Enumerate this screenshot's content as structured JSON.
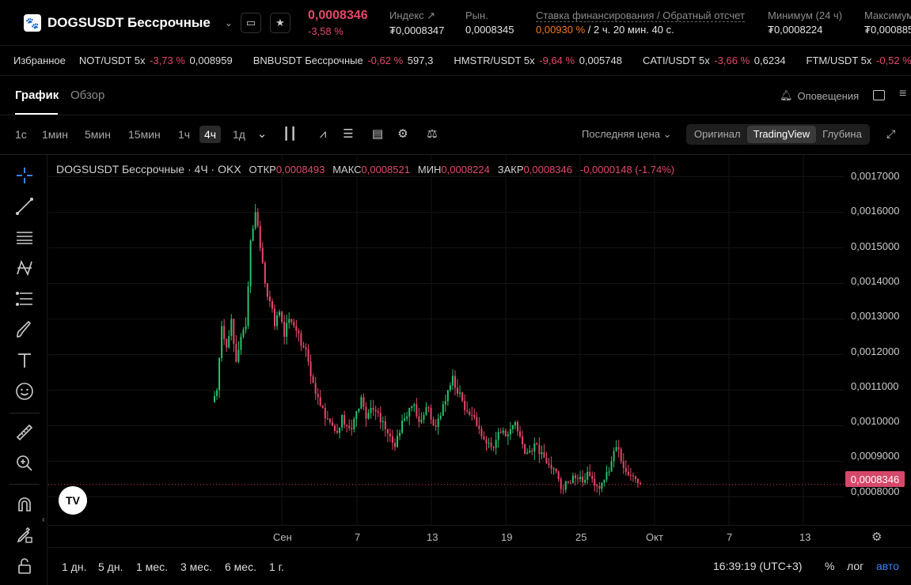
{
  "header": {
    "symbol": "DOGSUSDT Бессрочные",
    "price": "0,0008346",
    "change": "-3,58 %",
    "stats": [
      {
        "label": "Индекс",
        "value": "₮0,0008347"
      },
      {
        "label": "Рын.",
        "value": "0,0008345"
      },
      {
        "label": "Ставка финансирования / Обратный отсчет",
        "rate": "0,00930 %",
        "countdown": "/ 2 ч. 20 мин. 40 с."
      },
      {
        "label": "Минимум (24 ч)",
        "value": "₮0,0008224"
      },
      {
        "label": "Максимум",
        "value": "₮0,000885"
      }
    ]
  },
  "tickers": {
    "favorites_label": "Избранное",
    "items": [
      {
        "name": "NOT/USDT 5x",
        "change": "-3,73 %",
        "price": "0,008959"
      },
      {
        "name": "BNBUSDT Бессрочные",
        "change": "-0,62 %",
        "price": "597,3"
      },
      {
        "name": "HMSTR/USDT 5x",
        "change": "-9,64 %",
        "price": "0,005748"
      },
      {
        "name": "CATI/USDT 5x",
        "change": "-3,66 %",
        "price": "0,6234"
      },
      {
        "name": "FTM/USDT 5x",
        "change": "-0,52 %",
        "price": ""
      }
    ]
  },
  "tabs": {
    "chart": "График",
    "overview": "Обзор",
    "alerts": "Оповещения"
  },
  "toolbar": {
    "timeframes": [
      "1с",
      "1мин",
      "5мин",
      "15мин",
      "1ч",
      "4ч",
      "1д"
    ],
    "active_timeframe": "4ч",
    "price_type": "Последняя цена",
    "views": [
      "Оригинал",
      "TradingView",
      "Глубина"
    ],
    "active_view": "TradingView"
  },
  "legend": {
    "title": "DOGSUSDT Бессрочные · 4Ч · OKX",
    "open_label": "ОТКР",
    "open": "0,0008493",
    "high_label": "МАКС",
    "high": "0,0008521",
    "low_label": "МИН",
    "low": "0,0008224",
    "close_label": "ЗАКР",
    "close": "0,0008346",
    "change": "-0,0000148 (-1.74%)"
  },
  "axes": {
    "y_ticks": [
      "0,0017000",
      "0,0016000",
      "0,0015000",
      "0,0014000",
      "0,0013000",
      "0,0012000",
      "0,0011000",
      "0,0010000",
      "0,0009000",
      "0,0008000"
    ],
    "x_ticks": [
      "Сен",
      "7",
      "13",
      "19",
      "25",
      "Окт",
      "7",
      "13"
    ],
    "current_price": "0,0008346"
  },
  "bottom": {
    "ranges": [
      "1 дн.",
      "5 дн.",
      "1 мес.",
      "3 мес.",
      "6 мес.",
      "1 г."
    ],
    "clock": "16:39:19 (UTC+3)",
    "percent": "%",
    "log": "лог",
    "auto": "авто"
  },
  "colors": {
    "up": "#27c26c",
    "down": "#e5486a",
    "bg": "#000000"
  },
  "chart_data": {
    "type": "candlestick",
    "title": "DOGSUSDT Бессрочные · 4Ч · OKX",
    "ylim": [
      0.00075,
      0.00175
    ],
    "x_range": [
      "Сен",
      "Окт 13"
    ],
    "close_series_approx": [
      0.0011,
      0.00128,
      0.00122,
      0.0013,
      0.00118,
      0.00125,
      0.00128,
      0.00152,
      0.0016,
      0.0015,
      0.0014,
      0.00135,
      0.00128,
      0.00132,
      0.00125,
      0.0013,
      0.00128,
      0.00126,
      0.00122,
      0.00118,
      0.00112,
      0.00108,
      0.00105,
      0.00102,
      0.001,
      0.00098,
      0.00103,
      0.001,
      0.00099,
      0.00104,
      0.00108,
      0.00102,
      0.00105,
      0.00104,
      0.00101,
      0.00099,
      0.00097,
      0.00094,
      0.00098,
      0.00102,
      0.00105,
      0.00106,
      0.00101,
      0.00103,
      0.00105,
      0.001,
      0.00102,
      0.00106,
      0.0011,
      0.00114,
      0.00109,
      0.00107,
      0.00104,
      0.00103,
      0.001,
      0.00097,
      0.00095,
      0.00094,
      0.00096,
      0.00098,
      0.00097,
      0.00099,
      0.00101,
      0.00097,
      0.00092,
      0.00093,
      0.00095,
      0.00092,
      0.00091,
      0.00089,
      0.00088,
      0.00085,
      0.00082,
      0.00084,
      0.00086,
      0.00085,
      0.00084,
      0.00087,
      0.00085,
      0.00083,
      0.00084,
      0.00087,
      0.0009,
      0.00094,
      0.0009,
      0.00087,
      0.00086,
      0.00085,
      0.000835
    ]
  }
}
